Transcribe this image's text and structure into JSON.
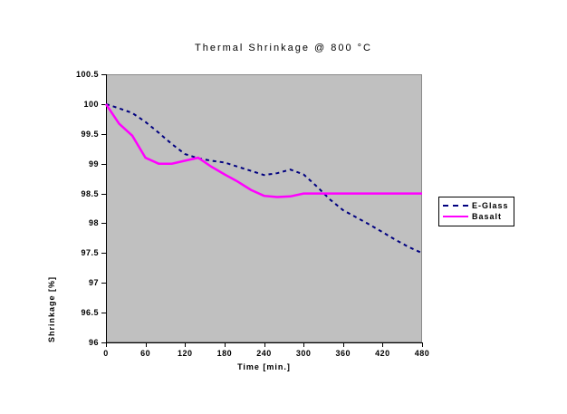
{
  "chart_data": {
    "type": "line",
    "title": "Thermal Shrinkage @ 800 °C",
    "xlabel": "Time [min.]",
    "ylabel": "Shrinkage [%]",
    "xlim": [
      0,
      480
    ],
    "ylim": [
      96,
      100.5
    ],
    "x_ticks": [
      0,
      60,
      120,
      180,
      240,
      300,
      360,
      420,
      480
    ],
    "y_ticks": [
      96,
      96.5,
      97,
      97.5,
      98,
      98.5,
      99,
      99.5,
      100,
      100.5
    ],
    "grid": false,
    "legend_position": "right-outside",
    "plot_bg_color": "#c0c0c0",
    "axis_color": "#000000",
    "x": [
      0,
      20,
      40,
      60,
      80,
      100,
      120,
      140,
      160,
      180,
      200,
      220,
      240,
      260,
      280,
      300,
      320,
      340,
      360,
      380,
      400,
      420,
      440,
      460,
      480
    ],
    "series": [
      {
        "name": "E-Glass",
        "color": "#000080",
        "line_style": "dashed",
        "values": [
          100,
          99.93,
          99.85,
          99.7,
          99.52,
          99.33,
          99.16,
          99.09,
          99.05,
          99.02,
          98.95,
          98.88,
          98.81,
          98.84,
          98.9,
          98.82,
          98.62,
          98.4,
          98.22,
          98.1,
          97.98,
          97.85,
          97.72,
          97.6,
          97.5
        ]
      },
      {
        "name": "Basalt",
        "color": "#ff00ff",
        "line_style": "solid",
        "values": [
          100,
          99.67,
          99.47,
          99.1,
          99,
          99,
          99.05,
          99.1,
          98.95,
          98.82,
          98.7,
          98.56,
          98.46,
          98.44,
          98.45,
          98.5,
          98.5,
          98.5,
          98.5,
          98.5,
          98.5,
          98.5,
          98.5,
          98.5,
          98.5
        ]
      }
    ]
  }
}
